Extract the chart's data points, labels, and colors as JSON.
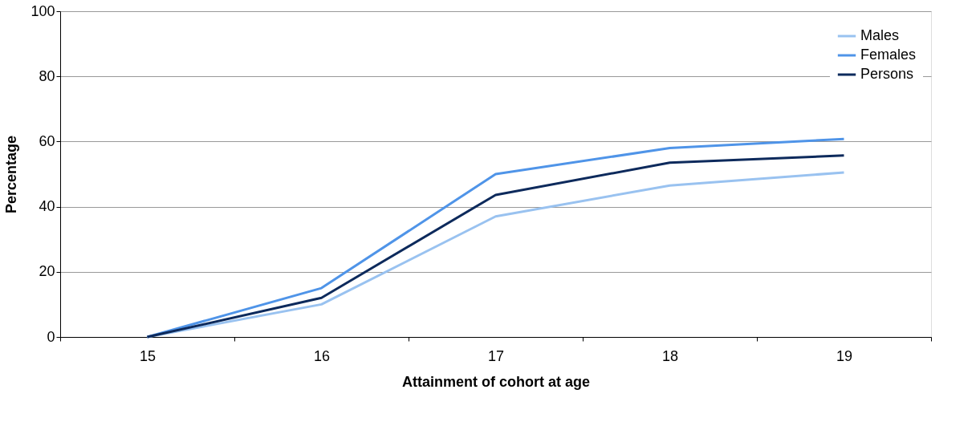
{
  "chart_data": {
    "type": "line",
    "xlabel": "Attainment  of cohort at age",
    "ylabel": "Percentage",
    "categories": [
      "15",
      "16",
      "17",
      "18",
      "19"
    ],
    "series": [
      {
        "name": "Males",
        "color": "#99c2f0",
        "values": [
          0,
          10,
          37,
          46.5,
          50.5
        ]
      },
      {
        "name": "Females",
        "color": "#4f94e8",
        "values": [
          0,
          15,
          50,
          58,
          60.8
        ]
      },
      {
        "name": "Persons",
        "color": "#0d2a5c",
        "values": [
          0,
          12,
          43.6,
          53.5,
          55.7
        ]
      }
    ],
    "ylim": [
      0,
      100
    ],
    "yticks": [
      0,
      20,
      40,
      60,
      80,
      100
    ],
    "grid": "y",
    "legend": "top right",
    "marker": "none",
    "line_style": "solid"
  }
}
